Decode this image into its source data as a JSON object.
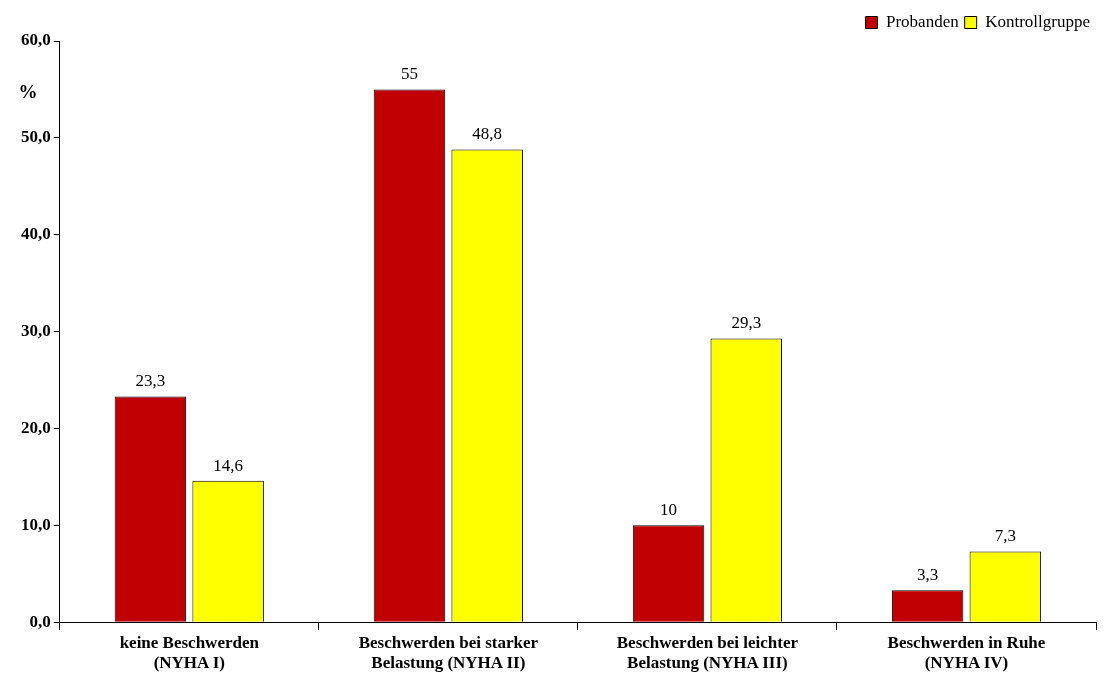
{
  "chart_data": {
    "type": "bar",
    "ylabel": "%",
    "categories": [
      "keine Beschwerden (NYHA I)",
      "Beschwerden bei starker Belastung (NYHA II)",
      "Beschwerden bei leichter Belastung (NYHA III)",
      "Beschwerden in Ruhe (NYHA IV)"
    ],
    "series": [
      {
        "name": "Probanden",
        "color": "#c00000",
        "values": [
          23.3,
          55,
          10,
          3.3
        ],
        "value_labels": [
          "23,3",
          "55",
          "10",
          "3,3"
        ]
      },
      {
        "name": "Kontrollgruppe",
        "color": "#ffff00",
        "values": [
          14.6,
          48.8,
          29.3,
          7.3
        ],
        "value_labels": [
          "14,6",
          "48,8",
          "29,3",
          "7,3"
        ]
      }
    ],
    "ylim": [
      0,
      60
    ],
    "yticks": [
      {
        "value": 0,
        "label": "0,0"
      },
      {
        "value": 10,
        "label": "10,0"
      },
      {
        "value": 20,
        "label": "20,0"
      },
      {
        "value": 30,
        "label": "30,0"
      },
      {
        "value": 40,
        "label": "40,0"
      },
      {
        "value": 50,
        "label": "50,0"
      },
      {
        "value": 60,
        "label": "60,0"
      }
    ],
    "grid": false,
    "legend": "top right"
  }
}
